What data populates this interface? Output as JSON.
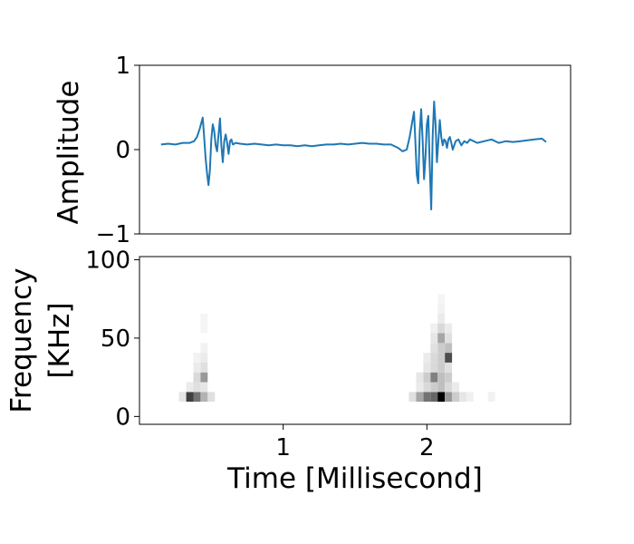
{
  "chart_data": [
    {
      "type": "line",
      "ylabel": "Amplitude",
      "xlim": [
        0.0,
        3.0
      ],
      "ylim": [
        -1,
        1
      ],
      "yticks": [
        {
          "value": 1,
          "label": "1"
        },
        {
          "value": 0,
          "label": "0"
        },
        {
          "value": -1,
          "label": "−1"
        }
      ],
      "grid": false,
      "line_color": "#1f77b4",
      "series": [
        {
          "x": [
            0.15,
            0.2,
            0.25,
            0.3,
            0.35,
            0.38,
            0.4,
            0.42,
            0.44,
            0.45,
            0.46,
            0.47,
            0.48,
            0.49,
            0.5,
            0.51,
            0.52,
            0.53,
            0.54,
            0.55,
            0.56,
            0.57,
            0.58,
            0.59,
            0.6,
            0.61,
            0.62,
            0.63,
            0.64,
            0.65,
            0.67,
            0.7,
            0.75,
            0.8,
            0.85,
            0.9,
            0.95,
            1.0,
            1.05,
            1.1,
            1.15,
            1.2,
            1.25,
            1.3,
            1.35,
            1.4,
            1.45,
            1.5,
            1.55,
            1.6,
            1.65,
            1.7,
            1.75,
            1.8,
            1.83,
            1.86,
            1.88,
            1.9,
            1.91,
            1.92,
            1.93,
            1.94,
            1.95,
            1.96,
            1.97,
            1.98,
            1.99,
            2.0,
            2.01,
            2.02,
            2.03,
            2.04,
            2.05,
            2.06,
            2.07,
            2.08,
            2.09,
            2.1,
            2.11,
            2.12,
            2.13,
            2.14,
            2.15,
            2.16,
            2.17,
            2.18,
            2.2,
            2.22,
            2.24,
            2.26,
            2.28,
            2.3,
            2.35,
            2.4,
            2.45,
            2.5,
            2.55,
            2.6,
            2.65,
            2.7,
            2.75,
            2.8,
            2.83
          ],
          "y": [
            0.06,
            0.07,
            0.06,
            0.08,
            0.08,
            0.1,
            0.15,
            0.25,
            0.38,
            0.15,
            -0.1,
            -0.28,
            -0.42,
            -0.25,
            0.12,
            0.3,
            0.22,
            0.05,
            -0.02,
            0.18,
            0.37,
            0.05,
            -0.15,
            0.1,
            0.18,
            0.08,
            -0.05,
            0.1,
            0.12,
            0.06,
            0.08,
            0.07,
            0.06,
            0.07,
            0.06,
            0.05,
            0.06,
            0.05,
            0.05,
            0.04,
            0.05,
            0.04,
            0.05,
            0.06,
            0.06,
            0.07,
            0.06,
            0.07,
            0.08,
            0.07,
            0.07,
            0.06,
            0.06,
            0.02,
            -0.02,
            0.0,
            0.15,
            0.35,
            0.45,
            0.1,
            -0.3,
            -0.4,
            0.2,
            0.48,
            0.12,
            -0.35,
            -0.1,
            0.3,
            0.4,
            -0.2,
            -0.71,
            0.15,
            0.57,
            0.3,
            -0.15,
            0.1,
            0.35,
            0.15,
            0.05,
            0.12,
            0.1,
            0.02,
            0.12,
            0.15,
            0.08,
            0.0,
            0.1,
            0.12,
            0.05,
            0.1,
            0.08,
            0.12,
            0.08,
            0.1,
            0.12,
            0.08,
            0.1,
            0.09,
            0.1,
            0.11,
            0.12,
            0.13,
            0.09
          ]
        }
      ]
    },
    {
      "type": "heatmap",
      "ylabel": "Frequency\n[KHz]",
      "xlabel": "Time [Millisecond]",
      "xlim": [
        0.0,
        3.0
      ],
      "ylim": [
        -5,
        102
      ],
      "xticks": [
        {
          "value": 1,
          "label": "1"
        },
        {
          "value": 2,
          "label": "2"
        }
      ],
      "yticks": [
        {
          "value": 100,
          "label": "100"
        },
        {
          "value": 50,
          "label": "50"
        },
        {
          "value": 0,
          "label": "0"
        }
      ],
      "grid": false,
      "colormap": "Greys",
      "cell_width": 0.05,
      "cell_height": 6.25,
      "cells": [
        {
          "t": 0.3,
          "f": 12.5,
          "v": 0.1
        },
        {
          "t": 0.35,
          "f": 12.5,
          "v": 0.75
        },
        {
          "t": 0.4,
          "f": 12.5,
          "v": 0.55
        },
        {
          "t": 0.45,
          "f": 12.5,
          "v": 0.3
        },
        {
          "t": 0.5,
          "f": 12.5,
          "v": 0.12
        },
        {
          "t": 0.35,
          "f": 18.75,
          "v": 0.08
        },
        {
          "t": 0.4,
          "f": 18.75,
          "v": 0.12
        },
        {
          "t": 0.45,
          "f": 18.75,
          "v": 0.1
        },
        {
          "t": 0.4,
          "f": 25,
          "v": 0.15
        },
        {
          "t": 0.45,
          "f": 25,
          "v": 0.4
        },
        {
          "t": 0.4,
          "f": 31.25,
          "v": 0.08
        },
        {
          "t": 0.45,
          "f": 31.25,
          "v": 0.12
        },
        {
          "t": 0.4,
          "f": 37.5,
          "v": 0.05
        },
        {
          "t": 0.45,
          "f": 37.5,
          "v": 0.08
        },
        {
          "t": 0.45,
          "f": 43.75,
          "v": 0.05
        },
        {
          "t": 0.45,
          "f": 56.25,
          "v": 0.04
        },
        {
          "t": 0.45,
          "f": 62.5,
          "v": 0.04
        },
        {
          "t": 1.9,
          "f": 12.5,
          "v": 0.12
        },
        {
          "t": 1.95,
          "f": 12.5,
          "v": 0.35
        },
        {
          "t": 2.0,
          "f": 12.5,
          "v": 0.55
        },
        {
          "t": 2.05,
          "f": 12.5,
          "v": 0.6
        },
        {
          "t": 2.1,
          "f": 12.5,
          "v": 1.0
        },
        {
          "t": 2.15,
          "f": 12.5,
          "v": 0.4
        },
        {
          "t": 2.2,
          "f": 12.5,
          "v": 0.2
        },
        {
          "t": 2.25,
          "f": 12.5,
          "v": 0.1
        },
        {
          "t": 2.3,
          "f": 12.5,
          "v": 0.06
        },
        {
          "t": 2.45,
          "f": 12.5,
          "v": 0.05
        },
        {
          "t": 1.95,
          "f": 18.75,
          "v": 0.08
        },
        {
          "t": 2.0,
          "f": 18.75,
          "v": 0.15
        },
        {
          "t": 2.05,
          "f": 18.75,
          "v": 0.2
        },
        {
          "t": 2.1,
          "f": 18.75,
          "v": 0.25
        },
        {
          "t": 2.15,
          "f": 18.75,
          "v": 0.15
        },
        {
          "t": 2.2,
          "f": 18.75,
          "v": 0.08
        },
        {
          "t": 1.95,
          "f": 25,
          "v": 0.1
        },
        {
          "t": 2.0,
          "f": 25,
          "v": 0.2
        },
        {
          "t": 2.05,
          "f": 25,
          "v": 0.5
        },
        {
          "t": 2.1,
          "f": 25,
          "v": 0.25
        },
        {
          "t": 2.15,
          "f": 25,
          "v": 0.2
        },
        {
          "t": 2.0,
          "f": 31.25,
          "v": 0.1
        },
        {
          "t": 2.05,
          "f": 31.25,
          "v": 0.15
        },
        {
          "t": 2.1,
          "f": 31.25,
          "v": 0.2
        },
        {
          "t": 2.15,
          "f": 31.25,
          "v": 0.12
        },
        {
          "t": 2.0,
          "f": 37.5,
          "v": 0.08
        },
        {
          "t": 2.05,
          "f": 37.5,
          "v": 0.15
        },
        {
          "t": 2.1,
          "f": 37.5,
          "v": 0.2
        },
        {
          "t": 2.15,
          "f": 37.5,
          "v": 0.7
        },
        {
          "t": 2.05,
          "f": 43.75,
          "v": 0.12
        },
        {
          "t": 2.1,
          "f": 43.75,
          "v": 0.2
        },
        {
          "t": 2.15,
          "f": 43.75,
          "v": 0.25
        },
        {
          "t": 2.05,
          "f": 50,
          "v": 0.1
        },
        {
          "t": 2.1,
          "f": 50,
          "v": 0.35
        },
        {
          "t": 2.15,
          "f": 50,
          "v": 0.12
        },
        {
          "t": 2.05,
          "f": 56.25,
          "v": 0.06
        },
        {
          "t": 2.1,
          "f": 56.25,
          "v": 0.15
        },
        {
          "t": 2.15,
          "f": 56.25,
          "v": 0.08
        },
        {
          "t": 2.1,
          "f": 62.5,
          "v": 0.08
        },
        {
          "t": 2.1,
          "f": 68.75,
          "v": 0.05
        },
        {
          "t": 2.1,
          "f": 75,
          "v": 0.04
        }
      ]
    }
  ]
}
